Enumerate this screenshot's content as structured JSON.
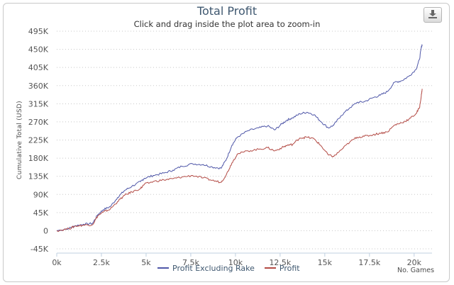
{
  "chart_data": {
    "type": "line",
    "title": "Total Profit",
    "subtitle": "Click and drag inside the plot area to zoom-in",
    "xlabel": "No. Games",
    "ylabel": "Cumulative Total (USD)",
    "xlim": [
      0,
      21000
    ],
    "ylim": [
      -45000,
      495000
    ],
    "x_ticks": [
      {
        "v": 0,
        "label": "0k"
      },
      {
        "v": 2500,
        "label": "2.5k"
      },
      {
        "v": 5000,
        "label": "5k"
      },
      {
        "v": 7500,
        "label": "7.5k"
      },
      {
        "v": 10000,
        "label": "10k"
      },
      {
        "v": 12500,
        "label": "12.5k"
      },
      {
        "v": 15000,
        "label": "15k"
      },
      {
        "v": 17500,
        "label": "17.5k"
      },
      {
        "v": 20000,
        "label": "20k"
      }
    ],
    "y_ticks": [
      {
        "v": -45000,
        "label": "-45K"
      },
      {
        "v": 0,
        "label": "0"
      },
      {
        "v": 45000,
        "label": "45K"
      },
      {
        "v": 90000,
        "label": "90K"
      },
      {
        "v": 135000,
        "label": "135K"
      },
      {
        "v": 180000,
        "label": "180K"
      },
      {
        "v": 225000,
        "label": "225K"
      },
      {
        "v": 270000,
        "label": "270K"
      },
      {
        "v": 315000,
        "label": "315K"
      },
      {
        "v": 360000,
        "label": "360K"
      },
      {
        "v": 405000,
        "label": "405K"
      },
      {
        "v": 450000,
        "label": "450K"
      },
      {
        "v": 495000,
        "label": "495K"
      }
    ],
    "grid": "horizontal dotted",
    "legend_position": "bottom-center",
    "series": [
      {
        "name": "Profit Excluding Rake",
        "color": "#4f57a8",
        "points": [
          [
            0,
            0
          ],
          [
            700,
            6000
          ],
          [
            1000,
            12000
          ],
          [
            1500,
            16000
          ],
          [
            2000,
            18000
          ],
          [
            2300,
            40000
          ],
          [
            2600,
            52000
          ],
          [
            3000,
            60000
          ],
          [
            3400,
            82000
          ],
          [
            3800,
            100000
          ],
          [
            4200,
            110000
          ],
          [
            4700,
            122000
          ],
          [
            4900,
            130000
          ],
          [
            5400,
            137000
          ],
          [
            6000,
            143000
          ],
          [
            6500,
            150000
          ],
          [
            7000,
            160000
          ],
          [
            7600,
            166000
          ],
          [
            8200,
            164000
          ],
          [
            8700,
            158000
          ],
          [
            9200,
            155000
          ],
          [
            9500,
            178000
          ],
          [
            9800,
            212000
          ],
          [
            10100,
            232000
          ],
          [
            10700,
            248000
          ],
          [
            11300,
            255000
          ],
          [
            11800,
            260000
          ],
          [
            12200,
            250000
          ],
          [
            12600,
            265000
          ],
          [
            12900,
            275000
          ],
          [
            13200,
            280000
          ],
          [
            13600,
            290000
          ],
          [
            14000,
            294000
          ],
          [
            14400,
            288000
          ],
          [
            14800,
            270000
          ],
          [
            15200,
            255000
          ],
          [
            15500,
            262000
          ],
          [
            15900,
            285000
          ],
          [
            16400,
            305000
          ],
          [
            16800,
            318000
          ],
          [
            17200,
            320000
          ],
          [
            17700,
            330000
          ],
          [
            18100,
            336000
          ],
          [
            18500,
            345000
          ],
          [
            18900,
            368000
          ],
          [
            19300,
            372000
          ],
          [
            19700,
            383000
          ],
          [
            20100,
            400000
          ],
          [
            20300,
            425000
          ],
          [
            20400,
            455000
          ],
          [
            20450,
            462000
          ]
        ]
      },
      {
        "name": "Profit",
        "color": "#b34a44",
        "points": [
          [
            0,
            0
          ],
          [
            700,
            5000
          ],
          [
            1000,
            11000
          ],
          [
            1500,
            14000
          ],
          [
            2000,
            15000
          ],
          [
            2300,
            37000
          ],
          [
            2600,
            46000
          ],
          [
            3000,
            54000
          ],
          [
            3400,
            72000
          ],
          [
            3800,
            88000
          ],
          [
            4200,
            96000
          ],
          [
            4700,
            105000
          ],
          [
            4900,
            115000
          ],
          [
            5400,
            122000
          ],
          [
            6000,
            126000
          ],
          [
            6500,
            129000
          ],
          [
            7000,
            133000
          ],
          [
            7600,
            137000
          ],
          [
            8200,
            131000
          ],
          [
            8700,
            125000
          ],
          [
            9200,
            120000
          ],
          [
            9500,
            140000
          ],
          [
            9800,
            168000
          ],
          [
            10100,
            190000
          ],
          [
            10700,
            198000
          ],
          [
            11300,
            202000
          ],
          [
            11800,
            206000
          ],
          [
            12200,
            198000
          ],
          [
            12600,
            206000
          ],
          [
            12900,
            212000
          ],
          [
            13200,
            214000
          ],
          [
            13600,
            230000
          ],
          [
            14000,
            232000
          ],
          [
            14400,
            228000
          ],
          [
            14800,
            210000
          ],
          [
            15200,
            188000
          ],
          [
            15500,
            184000
          ],
          [
            15900,
            200000
          ],
          [
            16400,
            220000
          ],
          [
            16800,
            232000
          ],
          [
            17200,
            234000
          ],
          [
            17700,
            238000
          ],
          [
            18100,
            242000
          ],
          [
            18500,
            245000
          ],
          [
            18900,
            262000
          ],
          [
            19300,
            268000
          ],
          [
            19700,
            276000
          ],
          [
            20100,
            290000
          ],
          [
            20300,
            305000
          ],
          [
            20400,
            335000
          ],
          [
            20450,
            352000
          ]
        ]
      }
    ]
  },
  "export_button": {
    "icon": "download-icon"
  }
}
